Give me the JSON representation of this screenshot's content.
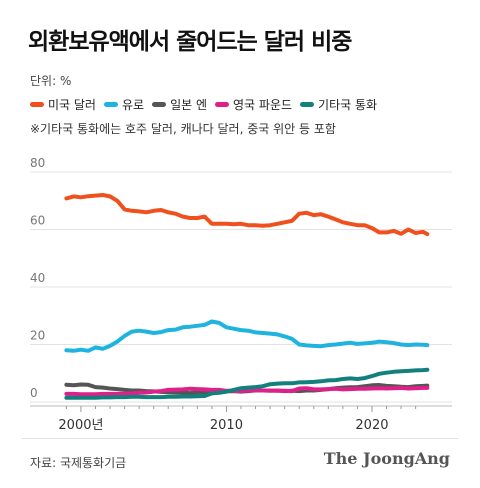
{
  "title": "외환보유액에서 줄어드는 달러 비중",
  "unit_label": "단위: %",
  "note": "※기타국 통화에는 호주 달러, 캐나다 달러, 중국 위안 등 포함",
  "source": "자료: 국제통화기금",
  "brand": "The JoongAng",
  "chart_data": {
    "type": "line",
    "xlim": [
      1996.5,
      2025.5
    ],
    "ylim": [
      0,
      80
    ],
    "yticks": [
      0,
      20,
      40,
      60,
      80
    ],
    "xticks": [
      {
        "value": 2000,
        "label": "2000년"
      },
      {
        "value": 2010,
        "label": "2010"
      },
      {
        "value": 2020,
        "label": "2020"
      }
    ],
    "grid": true,
    "legend_position": "top-left",
    "series": [
      {
        "name": "미국 달러",
        "color": "#f0501e",
        "points": [
          [
            1999.0,
            70.8
          ],
          [
            1999.5,
            71.5
          ],
          [
            2000.0,
            71.2
          ],
          [
            2000.5,
            71.6
          ],
          [
            2001.0,
            71.8
          ],
          [
            2001.5,
            72.0
          ],
          [
            2002.0,
            71.5
          ],
          [
            2002.5,
            70.0
          ],
          [
            2003.0,
            67.0
          ],
          [
            2003.5,
            66.5
          ],
          [
            2004.0,
            66.3
          ],
          [
            2004.5,
            66.0
          ],
          [
            2005.0,
            66.5
          ],
          [
            2005.5,
            66.8
          ],
          [
            2006.0,
            66.0
          ],
          [
            2006.5,
            65.5
          ],
          [
            2007.0,
            64.5
          ],
          [
            2007.5,
            64.0
          ],
          [
            2008.0,
            64.0
          ],
          [
            2008.5,
            64.5
          ],
          [
            2009.0,
            62.0
          ],
          [
            2009.5,
            62.0
          ],
          [
            2010.0,
            62.0
          ],
          [
            2010.5,
            61.8
          ],
          [
            2011.0,
            62.0
          ],
          [
            2011.5,
            61.5
          ],
          [
            2012.0,
            61.5
          ],
          [
            2012.5,
            61.3
          ],
          [
            2013.0,
            61.5
          ],
          [
            2013.5,
            62.0
          ],
          [
            2014.0,
            62.5
          ],
          [
            2014.5,
            63.0
          ],
          [
            2015.0,
            65.5
          ],
          [
            2015.5,
            65.8
          ],
          [
            2016.0,
            65.0
          ],
          [
            2016.5,
            65.3
          ],
          [
            2017.0,
            64.5
          ],
          [
            2017.5,
            63.5
          ],
          [
            2018.0,
            62.5
          ],
          [
            2018.5,
            62.0
          ],
          [
            2019.0,
            61.5
          ],
          [
            2019.5,
            61.5
          ],
          [
            2020.0,
            60.5
          ],
          [
            2020.5,
            59.0
          ],
          [
            2021.0,
            59.0
          ],
          [
            2021.5,
            59.5
          ],
          [
            2022.0,
            58.5
          ],
          [
            2022.5,
            60.0
          ],
          [
            2023.0,
            58.8
          ],
          [
            2023.5,
            59.2
          ],
          [
            2023.8,
            58.4
          ]
        ]
      },
      {
        "name": "유로",
        "color": "#1fb4e0",
        "points": [
          [
            1999.0,
            18.0
          ],
          [
            1999.5,
            17.8
          ],
          [
            2000.0,
            18.2
          ],
          [
            2000.5,
            17.8
          ],
          [
            2001.0,
            19.0
          ],
          [
            2001.5,
            18.5
          ],
          [
            2002.0,
            19.5
          ],
          [
            2002.5,
            21.0
          ],
          [
            2003.0,
            23.0
          ],
          [
            2003.5,
            24.5
          ],
          [
            2004.0,
            24.8
          ],
          [
            2004.5,
            24.5
          ],
          [
            2005.0,
            24.0
          ],
          [
            2005.5,
            24.3
          ],
          [
            2006.0,
            25.0
          ],
          [
            2006.5,
            25.2
          ],
          [
            2007.0,
            26.0
          ],
          [
            2007.5,
            26.2
          ],
          [
            2008.0,
            26.5
          ],
          [
            2008.5,
            26.8
          ],
          [
            2009.0,
            28.0
          ],
          [
            2009.5,
            27.5
          ],
          [
            2010.0,
            26.0
          ],
          [
            2010.5,
            25.5
          ],
          [
            2011.0,
            25.0
          ],
          [
            2011.5,
            24.8
          ],
          [
            2012.0,
            24.2
          ],
          [
            2012.5,
            24.0
          ],
          [
            2013.0,
            23.8
          ],
          [
            2013.5,
            23.5
          ],
          [
            2014.0,
            22.8
          ],
          [
            2014.5,
            22.0
          ],
          [
            2015.0,
            20.0
          ],
          [
            2015.5,
            19.7
          ],
          [
            2016.0,
            19.5
          ],
          [
            2016.5,
            19.4
          ],
          [
            2017.0,
            19.8
          ],
          [
            2017.5,
            20.0
          ],
          [
            2018.0,
            20.3
          ],
          [
            2018.5,
            20.6
          ],
          [
            2019.0,
            20.2
          ],
          [
            2019.5,
            20.4
          ],
          [
            2020.0,
            20.6
          ],
          [
            2020.5,
            21.0
          ],
          [
            2021.0,
            20.8
          ],
          [
            2021.5,
            20.5
          ],
          [
            2022.0,
            20.0
          ],
          [
            2022.5,
            19.8
          ],
          [
            2023.0,
            20.0
          ],
          [
            2023.5,
            19.9
          ],
          [
            2023.8,
            19.8
          ]
        ]
      },
      {
        "name": "일본 엔",
        "color": "#555555",
        "points": [
          [
            1999.0,
            6.0
          ],
          [
            1999.5,
            5.8
          ],
          [
            2000.0,
            6.1
          ],
          [
            2000.5,
            6.0
          ],
          [
            2001.0,
            5.2
          ],
          [
            2001.5,
            5.0
          ],
          [
            2002.0,
            4.7
          ],
          [
            2002.5,
            4.5
          ],
          [
            2003.0,
            4.2
          ],
          [
            2003.5,
            4.0
          ],
          [
            2004.0,
            4.0
          ],
          [
            2004.5,
            3.8
          ],
          [
            2005.0,
            3.7
          ],
          [
            2005.5,
            3.5
          ],
          [
            2006.0,
            3.4
          ],
          [
            2006.5,
            3.3
          ],
          [
            2007.0,
            3.2
          ],
          [
            2007.5,
            3.1
          ],
          [
            2008.0,
            3.3
          ],
          [
            2008.5,
            3.4
          ],
          [
            2009.0,
            3.2
          ],
          [
            2009.5,
            3.5
          ],
          [
            2010.0,
            3.7
          ],
          [
            2010.5,
            3.8
          ],
          [
            2011.0,
            3.6
          ],
          [
            2011.5,
            3.8
          ],
          [
            2012.0,
            4.0
          ],
          [
            2012.5,
            4.0
          ],
          [
            2013.0,
            3.9
          ],
          [
            2013.5,
            4.0
          ],
          [
            2014.0,
            3.8
          ],
          [
            2014.5,
            3.9
          ],
          [
            2015.0,
            3.8
          ],
          [
            2015.5,
            4.0
          ],
          [
            2016.0,
            4.0
          ],
          [
            2016.5,
            4.2
          ],
          [
            2017.0,
            4.5
          ],
          [
            2017.5,
            4.8
          ],
          [
            2018.0,
            5.0
          ],
          [
            2018.5,
            5.1
          ],
          [
            2019.0,
            5.2
          ],
          [
            2019.5,
            5.5
          ],
          [
            2020.0,
            5.8
          ],
          [
            2020.5,
            5.9
          ],
          [
            2021.0,
            5.6
          ],
          [
            2021.5,
            5.5
          ],
          [
            2022.0,
            5.3
          ],
          [
            2022.5,
            5.2
          ],
          [
            2023.0,
            5.5
          ],
          [
            2023.5,
            5.6
          ],
          [
            2023.8,
            5.7
          ]
        ]
      },
      {
        "name": "영국 파운드",
        "color": "#e0208a",
        "points": [
          [
            1999.0,
            2.8
          ],
          [
            1999.5,
            2.8
          ],
          [
            2000.0,
            2.7
          ],
          [
            2000.5,
            2.7
          ],
          [
            2001.0,
            2.7
          ],
          [
            2001.5,
            2.8
          ],
          [
            2002.0,
            2.8
          ],
          [
            2002.5,
            2.8
          ],
          [
            2003.0,
            2.8
          ],
          [
            2003.5,
            3.0
          ],
          [
            2004.0,
            3.2
          ],
          [
            2004.5,
            3.3
          ],
          [
            2005.0,
            3.6
          ],
          [
            2005.5,
            3.8
          ],
          [
            2006.0,
            4.2
          ],
          [
            2006.5,
            4.3
          ],
          [
            2007.0,
            4.4
          ],
          [
            2007.5,
            4.6
          ],
          [
            2008.0,
            4.5
          ],
          [
            2008.5,
            4.4
          ],
          [
            2009.0,
            4.2
          ],
          [
            2009.5,
            4.2
          ],
          [
            2010.0,
            3.9
          ],
          [
            2010.5,
            3.9
          ],
          [
            2011.0,
            3.8
          ],
          [
            2011.5,
            4.0
          ],
          [
            2012.0,
            4.0
          ],
          [
            2012.5,
            4.0
          ],
          [
            2013.0,
            4.0
          ],
          [
            2013.5,
            3.9
          ],
          [
            2014.0,
            3.9
          ],
          [
            2014.5,
            3.8
          ],
          [
            2015.0,
            4.7
          ],
          [
            2015.5,
            4.8
          ],
          [
            2016.0,
            4.4
          ],
          [
            2016.5,
            4.4
          ],
          [
            2017.0,
            4.5
          ],
          [
            2017.5,
            4.6
          ],
          [
            2018.0,
            4.4
          ],
          [
            2018.5,
            4.5
          ],
          [
            2019.0,
            4.6
          ],
          [
            2019.5,
            4.6
          ],
          [
            2020.0,
            4.7
          ],
          [
            2020.5,
            4.8
          ],
          [
            2021.0,
            4.7
          ],
          [
            2021.5,
            4.8
          ],
          [
            2022.0,
            4.9
          ],
          [
            2022.5,
            4.7
          ],
          [
            2023.0,
            4.8
          ],
          [
            2023.5,
            4.9
          ],
          [
            2023.8,
            4.9
          ]
        ]
      },
      {
        "name": "기타국 통화",
        "color": "#12807c",
        "points": [
          [
            1999.0,
            1.5
          ],
          [
            1999.5,
            1.5
          ],
          [
            2000.0,
            1.5
          ],
          [
            2000.5,
            1.5
          ],
          [
            2001.0,
            1.5
          ],
          [
            2001.5,
            1.6
          ],
          [
            2002.0,
            1.6
          ],
          [
            2002.5,
            1.7
          ],
          [
            2003.0,
            1.7
          ],
          [
            2003.5,
            1.8
          ],
          [
            2004.0,
            1.8
          ],
          [
            2004.5,
            1.7
          ],
          [
            2005.0,
            1.7
          ],
          [
            2005.5,
            1.7
          ],
          [
            2006.0,
            1.8
          ],
          [
            2006.5,
            1.8
          ],
          [
            2007.0,
            1.9
          ],
          [
            2007.5,
            1.9
          ],
          [
            2008.0,
            2.0
          ],
          [
            2008.5,
            2.1
          ],
          [
            2009.0,
            3.0
          ],
          [
            2009.5,
            3.2
          ],
          [
            2010.0,
            3.6
          ],
          [
            2010.5,
            4.2
          ],
          [
            2011.0,
            4.8
          ],
          [
            2011.5,
            5.0
          ],
          [
            2012.0,
            5.2
          ],
          [
            2012.5,
            5.5
          ],
          [
            2013.0,
            6.2
          ],
          [
            2013.5,
            6.4
          ],
          [
            2014.0,
            6.5
          ],
          [
            2014.5,
            6.5
          ],
          [
            2015.0,
            6.8
          ],
          [
            2015.5,
            6.9
          ],
          [
            2016.0,
            7.0
          ],
          [
            2016.5,
            7.2
          ],
          [
            2017.0,
            7.5
          ],
          [
            2017.5,
            7.6
          ],
          [
            2018.0,
            8.0
          ],
          [
            2018.5,
            8.2
          ],
          [
            2019.0,
            8.0
          ],
          [
            2019.5,
            8.3
          ],
          [
            2020.0,
            9.0
          ],
          [
            2020.5,
            9.8
          ],
          [
            2021.0,
            10.2
          ],
          [
            2021.5,
            10.5
          ],
          [
            2022.0,
            10.7
          ],
          [
            2022.5,
            10.8
          ],
          [
            2023.0,
            11.0
          ],
          [
            2023.5,
            11.1
          ],
          [
            2023.8,
            11.2
          ]
        ]
      }
    ]
  }
}
